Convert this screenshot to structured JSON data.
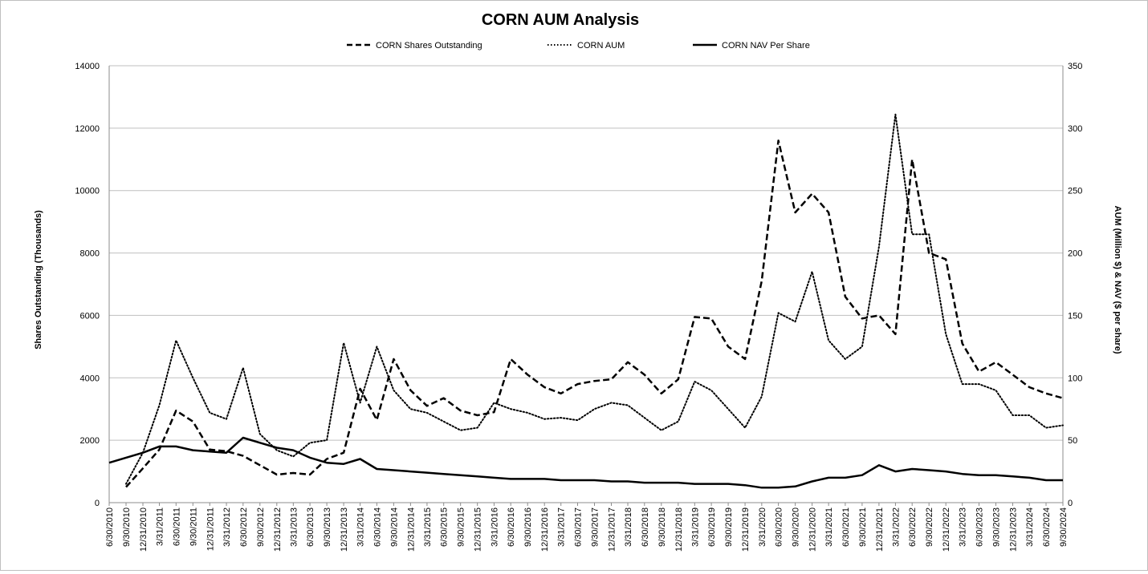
{
  "chart_data": {
    "type": "line",
    "title": "CORN AUM Analysis",
    "ylabel_left": "Shares Outstanding (Thousands)",
    "ylabel_right": "AUM (Million $) & NAV ($ per share)",
    "ylim_left": [
      0,
      14000
    ],
    "ylim_right": [
      0,
      350
    ],
    "yticks_left": [
      "0",
      "2000",
      "4000",
      "6000",
      "8000",
      "10000",
      "12000",
      "14000"
    ],
    "yticks_right": [
      "0",
      "50",
      "100",
      "150",
      "200",
      "250",
      "300",
      "350"
    ],
    "grid": true,
    "legend_position": "top",
    "x_ticks": [
      "6/30/2010",
      "9/30/2010",
      "12/31/2010",
      "3/31/2011",
      "6/30/2011",
      "9/30/2011",
      "12/31/2011",
      "3/31/2012",
      "6/30/2012",
      "9/30/2012",
      "12/31/2012",
      "3/31/2013",
      "6/30/2013",
      "9/30/2013",
      "12/31/2013",
      "3/31/2014",
      "6/30/2014",
      "9/30/2014",
      "12/31/2014",
      "3/31/2015",
      "6/30/2015",
      "9/30/2015",
      "12/31/2015",
      "3/31/2016",
      "6/30/2016",
      "9/30/2016",
      "12/31/2016",
      "3/31/2017",
      "6/30/2017",
      "9/30/2017",
      "12/31/2017",
      "3/31/2018",
      "6/30/2018",
      "9/30/2018",
      "12/31/2018",
      "3/31/2019",
      "6/30/2019",
      "9/30/2019",
      "12/31/2019",
      "3/31/2020",
      "6/30/2020",
      "9/30/2020",
      "12/31/2020",
      "3/31/2021",
      "6/30/2021",
      "9/30/2021",
      "12/31/2021",
      "3/31/2022",
      "6/30/2022",
      "9/30/2022",
      "12/31/2022",
      "3/31/2023",
      "6/30/2023",
      "9/30/2023",
      "12/31/2023",
      "3/31/2024",
      "6/30/2024",
      "9/30/2024"
    ],
    "series": [
      {
        "name": "CORN Shares Outstanding",
        "axis": "left",
        "style": "dashed",
        "x": [
          "9/30/2010",
          "12/31/2010",
          "3/31/2011",
          "6/30/2011",
          "9/30/2011",
          "12/31/2011",
          "3/31/2012",
          "6/30/2012",
          "9/30/2012",
          "12/31/2012",
          "3/31/2013",
          "6/30/2013",
          "9/30/2013",
          "12/31/2013",
          "3/31/2014",
          "6/30/2014",
          "9/30/2014",
          "12/31/2014",
          "3/31/2015",
          "6/30/2015",
          "9/30/2015",
          "12/31/2015",
          "3/31/2016",
          "6/30/2016",
          "9/30/2016",
          "12/31/2016",
          "3/31/2017",
          "6/30/2017",
          "9/30/2017",
          "12/31/2017",
          "3/31/2018",
          "6/30/2018",
          "9/30/2018",
          "12/31/2018",
          "3/31/2019",
          "6/30/2019",
          "9/30/2019",
          "12/31/2019",
          "3/31/2020",
          "6/30/2020",
          "9/30/2020",
          "12/31/2020",
          "3/31/2021",
          "6/30/2021",
          "9/30/2021",
          "12/31/2021",
          "3/31/2022",
          "6/30/2022",
          "9/30/2022",
          "12/31/2022",
          "3/31/2023",
          "6/30/2023",
          "9/30/2023",
          "12/31/2023",
          "3/31/2024",
          "6/30/2024",
          "9/30/2024"
        ],
        "values": [
          500,
          1100,
          1700,
          2950,
          2600,
          1700,
          1650,
          1500,
          1200,
          900,
          950,
          900,
          1400,
          1600,
          3650,
          2650,
          4600,
          3600,
          3100,
          3350,
          2950,
          2800,
          2900,
          4600,
          4100,
          3700,
          3500,
          3800,
          3900,
          3950,
          4500,
          4100,
          3500,
          3950,
          5950,
          5900,
          5000,
          4600,
          7100,
          11600,
          9300,
          9900,
          9300,
          6600,
          5900,
          6000,
          5400,
          11000,
          8000,
          7800,
          5100,
          4200,
          4500,
          4100,
          3700,
          3500,
          3350
        ]
      },
      {
        "name": "CORN AUM",
        "axis": "right",
        "style": "dotted",
        "x": [
          "9/30/2010",
          "12/31/2010",
          "3/31/2011",
          "6/30/2011",
          "9/30/2011",
          "12/31/2011",
          "3/31/2012",
          "6/30/2012",
          "9/30/2012",
          "12/31/2012",
          "3/31/2013",
          "6/30/2013",
          "9/30/2013",
          "12/31/2013",
          "3/31/2014",
          "6/30/2014",
          "9/30/2014",
          "12/31/2014",
          "3/31/2015",
          "6/30/2015",
          "9/30/2015",
          "12/31/2015",
          "3/31/2016",
          "6/30/2016",
          "9/30/2016",
          "12/31/2016",
          "3/31/2017",
          "6/30/2017",
          "9/30/2017",
          "12/31/2017",
          "3/31/2018",
          "6/30/2018",
          "9/30/2018",
          "12/31/2018",
          "3/31/2019",
          "6/30/2019",
          "9/30/2019",
          "12/31/2019",
          "3/31/2020",
          "6/30/2020",
          "9/30/2020",
          "12/31/2020",
          "3/31/2021",
          "6/30/2021",
          "9/30/2021",
          "12/31/2021",
          "3/31/2022",
          "6/30/2022",
          "9/30/2022",
          "12/31/2022",
          "3/31/2023",
          "6/30/2023",
          "9/30/2023",
          "12/31/2023",
          "3/31/2024",
          "6/30/2024",
          "9/30/2024"
        ],
        "values": [
          15,
          40,
          78,
          130,
          100,
          72,
          67,
          108,
          55,
          42,
          37,
          48,
          50,
          128,
          80,
          125,
          90,
          75,
          72,
          65,
          58,
          60,
          80,
          75,
          72,
          67,
          68,
          66,
          75,
          80,
          78,
          68,
          58,
          65,
          97,
          90,
          75,
          60,
          85,
          152,
          145,
          185,
          130,
          115,
          125,
          205,
          311,
          215,
          215,
          135,
          95,
          95,
          90,
          70,
          70,
          60,
          62
        ]
      },
      {
        "name": "CORN NAV Per Share",
        "axis": "right",
        "style": "solid",
        "x": [
          "6/30/2010",
          "9/30/2010",
          "12/31/2010",
          "3/31/2011",
          "6/30/2011",
          "9/30/2011",
          "12/31/2011",
          "3/31/2012",
          "6/30/2012",
          "9/30/2012",
          "12/31/2012",
          "3/31/2013",
          "6/30/2013",
          "9/30/2013",
          "12/31/2013",
          "3/31/2014",
          "6/30/2014",
          "9/30/2014",
          "12/31/2014",
          "3/31/2015",
          "6/30/2015",
          "9/30/2015",
          "12/31/2015",
          "3/31/2016",
          "6/30/2016",
          "9/30/2016",
          "12/31/2016",
          "3/31/2017",
          "6/30/2017",
          "9/30/2017",
          "12/31/2017",
          "3/31/2018",
          "6/30/2018",
          "9/30/2018",
          "12/31/2018",
          "3/31/2019",
          "6/30/2019",
          "9/30/2019",
          "12/31/2019",
          "3/31/2020",
          "6/30/2020",
          "9/30/2020",
          "12/31/2020",
          "3/31/2021",
          "6/30/2021",
          "9/30/2021",
          "12/31/2021",
          "3/31/2022",
          "6/30/2022",
          "9/30/2022",
          "12/31/2022",
          "3/31/2023",
          "6/30/2023",
          "9/30/2023",
          "12/31/2023",
          "3/31/2024",
          "6/30/2024",
          "9/30/2024"
        ],
        "values": [
          32,
          36,
          40,
          45,
          45,
          42,
          41,
          40,
          52,
          48,
          44,
          42,
          36,
          32,
          31,
          35,
          27,
          26,
          25,
          24,
          23,
          22,
          21,
          20,
          19,
          19,
          19,
          18,
          18,
          18,
          17,
          17,
          16,
          16,
          16,
          15,
          15,
          15,
          14,
          12,
          12,
          13,
          17,
          20,
          20,
          22,
          30,
          25,
          27,
          26,
          25,
          23,
          22,
          22,
          21,
          20,
          18,
          18
        ]
      }
    ]
  }
}
